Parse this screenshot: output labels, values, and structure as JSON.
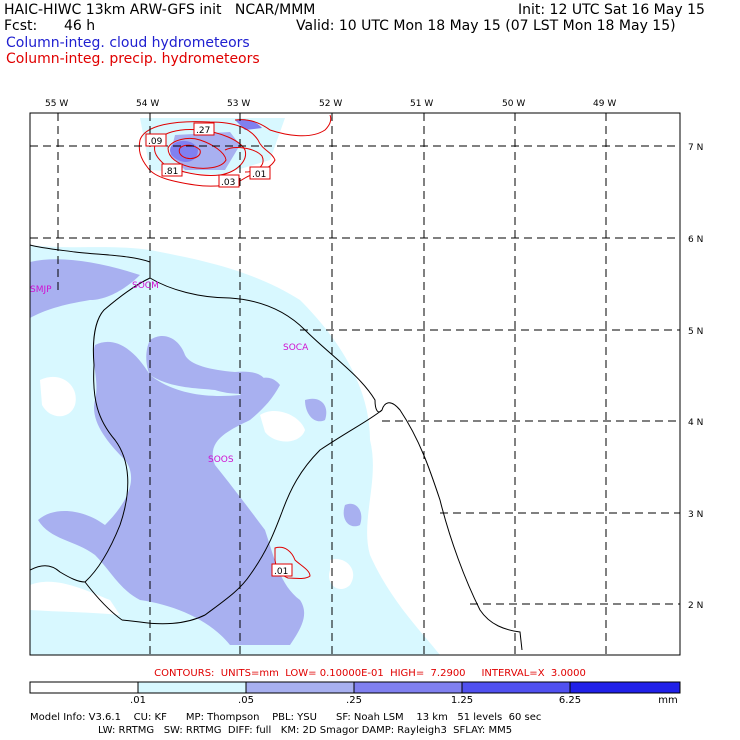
{
  "header": {
    "title": "HAIC-HIWC 13km ARW-GFS init   NCAR/MMM",
    "init": "Init: 12 UTC Sat 16 May 15",
    "fcst_label": "Fcst:",
    "fcst_value": "46 h",
    "valid": "Valid: 10 UTC Mon 18 May 15 (07 LST Mon 18 May 15)",
    "field1": "Column-integ. cloud hydrometeors",
    "field2": "Column-integ. precip. hydrometeors"
  },
  "map": {
    "lon_labels": [
      "55 W",
      "54 W",
      "53 W",
      "52 W",
      "51 W",
      "50 W",
      "49 W"
    ],
    "lat_labels": [
      "7 N",
      "6 N",
      "5 N",
      "4 N",
      "3 N",
      "2 N"
    ],
    "stations": [
      "SMJP",
      "SOCM",
      "SOCA",
      "SOOS"
    ],
    "contour_labels": [
      ".09",
      ".27",
      ".81",
      ".03",
      ".01",
      ".01"
    ]
  },
  "contours_info": "CONTOURS:  UNITS=mm  LOW= 0.10000E-01  HIGH=  7.2900     INTERVAL=X  3.0000",
  "colorbar": {
    "labels": [
      ".01",
      ".05",
      ".25",
      "1.25",
      "6.25",
      "mm"
    ],
    "colors": [
      "#ffffff",
      "#d8f8ff",
      "#a8b0f0",
      "#8080f0",
      "#5050f0",
      "#2020e8"
    ]
  },
  "model_info": {
    "line1": "Model Info: V3.6.1    CU: KF      MP: Thompson    PBL: YSU      SF: Noah LSM    13 km   51 levels  60 sec",
    "line2": "LW: RRTMG   SW: RRTMG  DIFF: full   KM: 2D Smagor DAMP: Rayleigh3  SFLAY: MM5"
  }
}
